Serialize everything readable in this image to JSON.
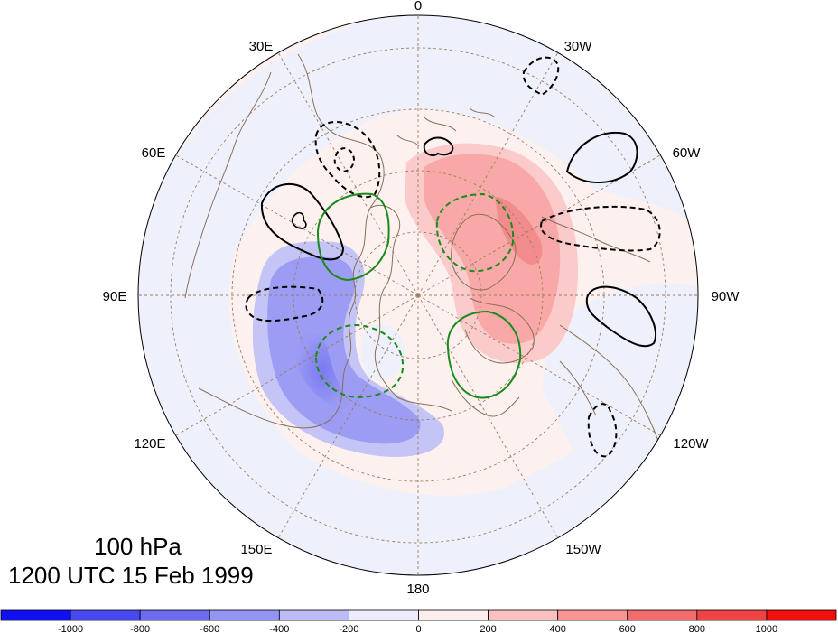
{
  "title": {
    "level": "100 hPa",
    "time": "1200 UTC 15 Feb 1999"
  },
  "longitude_labels": [
    "0",
    "30W",
    "60W",
    "90W",
    "120W",
    "150W",
    "180",
    "150E",
    "120E",
    "90E",
    "60E",
    "30E"
  ],
  "colorbar": {
    "colors": [
      "#1010f0",
      "#4848f0",
      "#6c6cf0",
      "#9494f4",
      "#bcbcfa",
      "#ececfd",
      "#fdeeee",
      "#fbc0c0",
      "#f89494",
      "#f46c6c",
      "#f04444",
      "#f01010"
    ],
    "ticks": [
      "-1000",
      "-800",
      "-600",
      "-400",
      "-200",
      "0",
      "200",
      "400",
      "600",
      "800",
      "1000"
    ]
  },
  "colors": {
    "coastline": "#8a6f5a",
    "grid": "#9a7d62",
    "positive_contour": "#000000",
    "negative_contour": "#000000",
    "green_contour": "#1a8a1a"
  }
}
